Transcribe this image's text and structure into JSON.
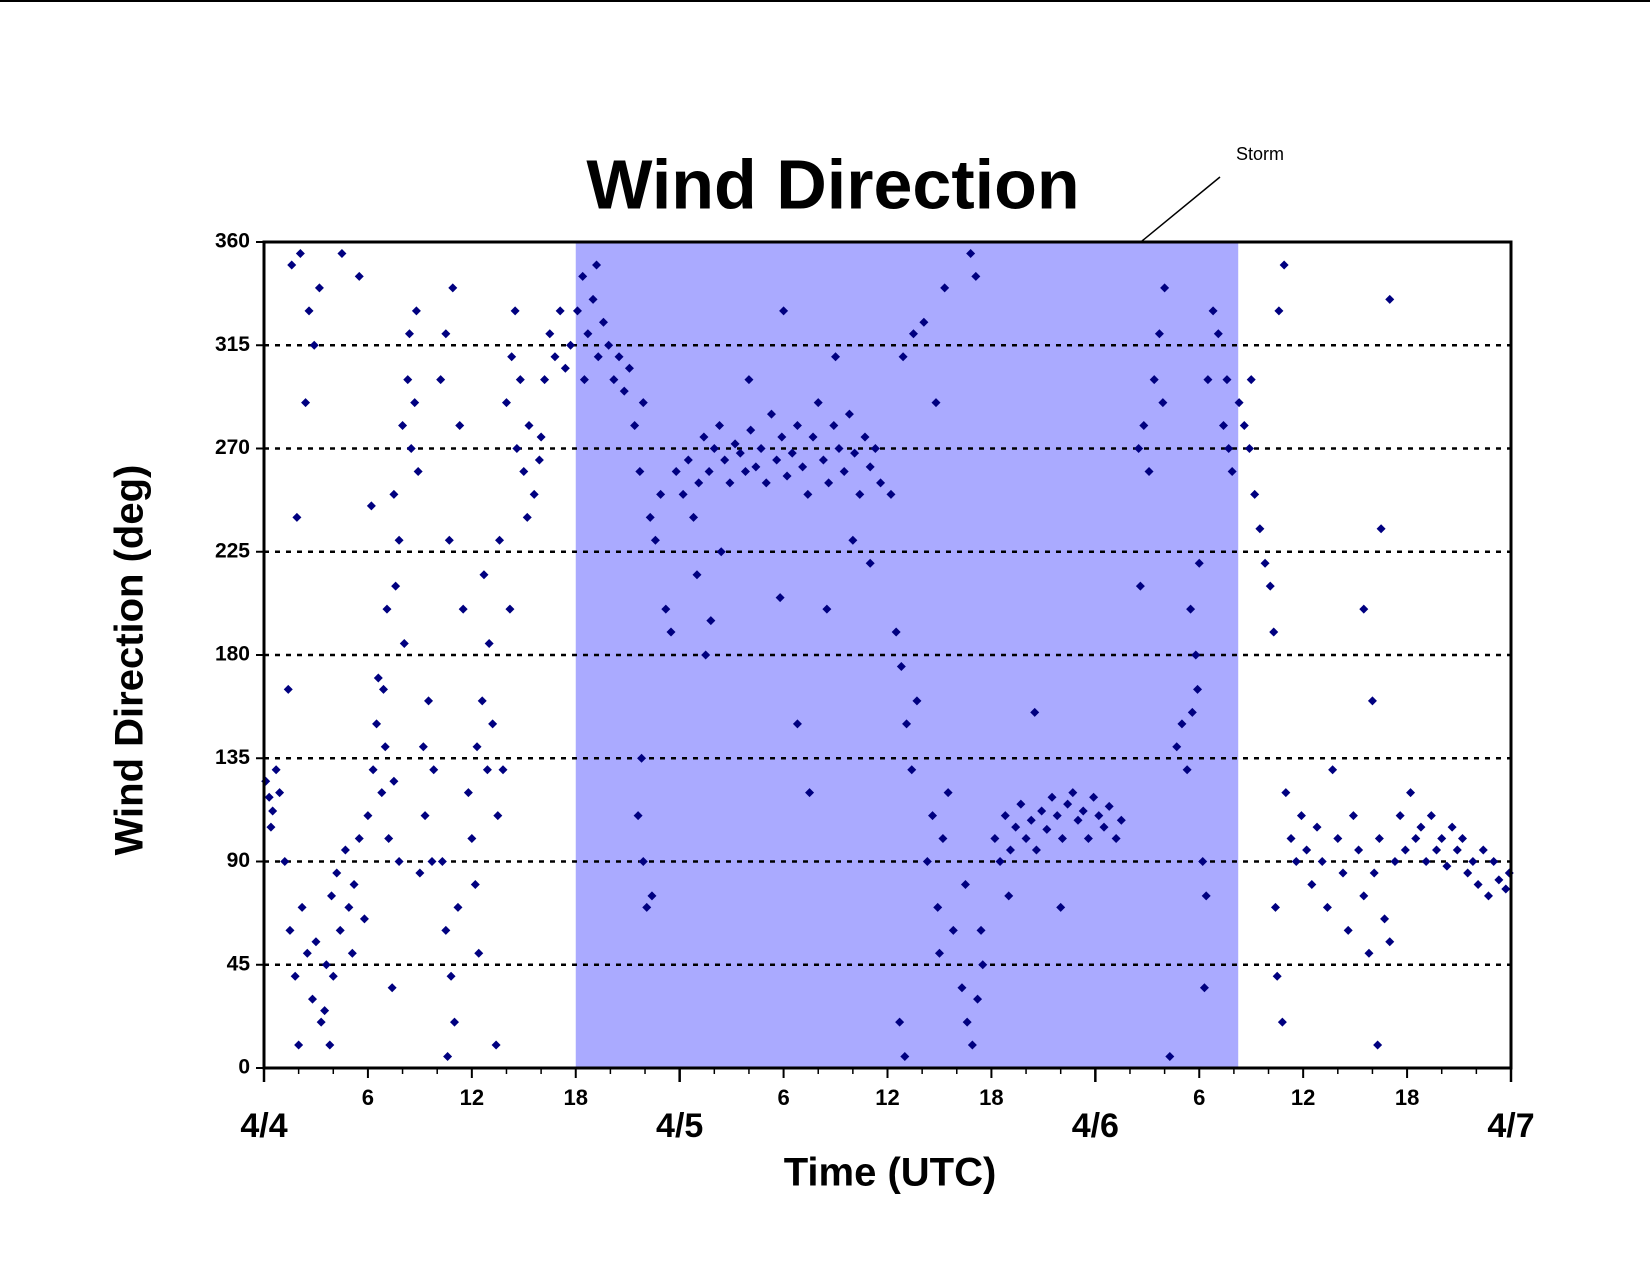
{
  "chart_data": {
    "type": "scatter",
    "title": "Wind Direction",
    "xlabel": "Time (UTC)",
    "ylabel": "Wind Direction (deg)",
    "xlim": [
      0,
      72
    ],
    "ylim": [
      0,
      360
    ],
    "yticks": [
      0,
      45,
      90,
      135,
      180,
      225,
      270,
      315,
      360
    ],
    "xticks": [
      6,
      12,
      18,
      {
        "value": 30,
        "label": "6"
      },
      {
        "value": 36,
        "label": "12"
      },
      {
        "value": 42,
        "label": "18"
      },
      {
        "value": 54,
        "label": "6"
      },
      {
        "value": 60,
        "label": "12"
      },
      {
        "value": 66,
        "label": "18"
      }
    ],
    "xmajorticks": [
      {
        "value": 0,
        "label": "4/4"
      },
      {
        "value": 24,
        "label": "4/5"
      },
      {
        "value": 48,
        "label": "4/6"
      },
      {
        "value": 72,
        "label": "4/7"
      }
    ],
    "xminorticks": [
      2,
      4,
      8,
      10,
      14,
      16,
      20,
      22,
      26,
      28,
      32,
      34,
      38,
      40,
      44,
      46,
      50,
      52,
      56,
      58,
      62,
      64,
      68,
      70
    ],
    "grid": true,
    "shade": {
      "x": [
        18,
        56.25
      ],
      "color": "#aaaaff"
    },
    "annotation": "Storm",
    "series": [
      {
        "color": "#000080",
        "x": [
          0.1,
          0.3,
          0.5,
          0.7,
          0.9,
          0.4,
          1.2,
          1.5,
          1.8,
          2.0,
          2.2,
          2.5,
          2.8,
          3.0,
          3.3,
          3.6,
          1.4,
          1.6,
          2.1,
          2.6,
          2.9,
          3.2,
          3.5,
          3.8,
          2.4,
          1.9,
          3.9,
          4.2,
          4.4,
          4.7,
          4.9,
          5.2,
          5.5,
          5.8,
          4.0,
          5.1,
          4.5,
          5.5,
          6.0,
          6.3,
          6.5,
          6.8,
          7.0,
          7.2,
          6.6,
          7.5,
          7.8,
          6.9,
          6.2,
          7.4,
          7.5,
          7.8,
          8.0,
          8.3,
          8.5,
          8.7,
          8.9,
          7.6,
          8.1,
          8.4,
          7.1,
          8.8,
          9.2,
          9.5,
          9.8,
          9.3,
          9.7,
          9.0,
          10.3,
          10.5,
          10.8,
          11.0,
          11.2,
          10.6,
          10.2,
          10.5,
          10.9,
          11.3,
          10.7,
          11.5,
          11.8,
          12.0,
          12.3,
          12.6,
          12.9,
          13.2,
          13.5,
          12.2,
          13.0,
          13.8,
          12.4,
          13.4,
          12.7,
          13.6,
          14.0,
          14.3,
          14.6,
          15.0,
          15.3,
          15.6,
          14.8,
          15.9,
          14.2,
          14.5,
          15.2,
          16.2,
          16.5,
          16.8,
          17.1,
          17.4,
          17.7,
          16.0,
          18.1,
          18.4,
          18.7,
          19.0,
          19.3,
          19.6,
          19.9,
          20.2,
          20.5,
          18.5,
          19.2,
          20.8,
          21.1,
          21.4,
          21.7,
          21.9,
          22.3,
          22.6,
          22.9,
          23.2,
          23.5,
          23.8,
          21.6,
          21.9,
          21.8,
          22.1,
          22.4,
          24.2,
          24.5,
          24.8,
          25.1,
          25.4,
          25.7,
          26.0,
          26.3,
          26.6,
          26.9,
          27.2,
          27.5,
          27.8,
          28.1,
          28.4,
          28.7,
          29.0,
          29.3,
          29.6,
          29.9,
          30.2,
          30.5,
          30.8,
          31.1,
          31.4,
          31.7,
          32.0,
          32.3,
          32.6,
          32.9,
          33.2,
          33.5,
          33.8,
          34.1,
          34.4,
          34.7,
          35.0,
          35.3,
          35.6,
          25.0,
          25.5,
          25.8,
          26.4,
          28.0,
          30.0,
          31.5,
          32.5,
          33.0,
          34.0,
          30.8,
          29.8,
          35.0,
          36.2,
          36.5,
          36.8,
          37.1,
          37.4,
          37.7,
          36.9,
          37.5,
          38.1,
          36.7,
          37.0,
          38.3,
          38.6,
          38.9,
          39.2,
          39.5,
          39.8,
          39.0,
          39.3,
          38.8,
          40.3,
          40.6,
          40.9,
          41.2,
          41.5,
          40.8,
          41.1,
          40.5,
          41.4,
          42.2,
          42.5,
          42.8,
          43.1,
          43.4,
          43.7,
          44.0,
          44.3,
          44.6,
          44.9,
          45.2,
          45.5,
          45.8,
          46.1,
          46.4,
          46.7,
          47.0,
          47.3,
          47.6,
          47.9,
          48.2,
          48.5,
          48.8,
          49.2,
          49.5,
          43.0,
          44.5,
          46.0,
          50.5,
          50.8,
          51.1,
          51.4,
          51.7,
          52.0,
          51.9,
          50.6,
          52.3,
          52.7,
          53.0,
          53.3,
          53.6,
          53.5,
          53.8,
          54.0,
          53.9,
          54.2,
          54.5,
          54.8,
          55.1,
          55.4,
          55.7,
          55.9,
          55.6,
          54.4,
          54.3,
          56.3,
          56.6,
          56.9,
          57.2,
          57.5,
          57.8,
          58.1,
          57.0,
          58.3,
          58.6,
          58.9,
          58.5,
          58.8,
          58.4,
          59.0,
          59.3,
          59.6,
          59.9,
          60.2,
          60.5,
          60.8,
          61.1,
          61.4,
          61.7,
          62.0,
          62.3,
          62.6,
          62.9,
          63.2,
          63.5,
          63.8,
          64.1,
          64.4,
          64.7,
          65.0,
          65.3,
          65.6,
          65.9,
          66.2,
          66.5,
          66.8,
          67.1,
          67.4,
          67.7,
          68.0,
          68.3,
          68.6,
          68.9,
          69.2,
          69.5,
          69.8,
          70.1,
          70.4,
          70.7,
          71.0,
          71.3,
          71.7,
          71.9,
          64.0,
          65.0,
          64.5,
          63.5,
          64.3
        ],
        "values": [
          125,
          118,
          112,
          130,
          120,
          105,
          90,
          60,
          40,
          10,
          70,
          50,
          30,
          55,
          20,
          45,
          165,
          350,
          355,
          330,
          315,
          340,
          25,
          10,
          290,
          240,
          75,
          85,
          60,
          95,
          70,
          80,
          100,
          65,
          40,
          50,
          355,
          345,
          110,
          130,
          150,
          120,
          140,
          100,
          170,
          125,
          90,
          165,
          245,
          35,
          250,
          230,
          280,
          300,
          270,
          290,
          260,
          210,
          185,
          320,
          200,
          330,
          140,
          160,
          130,
          110,
          90,
          85,
          90,
          60,
          40,
          20,
          70,
          5,
          300,
          320,
          340,
          280,
          230,
          200,
          120,
          100,
          140,
          160,
          130,
          150,
          110,
          80,
          185,
          130,
          50,
          10,
          215,
          230,
          290,
          310,
          270,
          260,
          280,
          250,
          300,
          265,
          200,
          330,
          240,
          300,
          320,
          310,
          330,
          305,
          315,
          275,
          330,
          345,
          320,
          335,
          310,
          325,
          315,
          300,
          310,
          300,
          350,
          295,
          305,
          280,
          260,
          290,
          240,
          230,
          250,
          200,
          190,
          260,
          110,
          90,
          135,
          70,
          75,
          250,
          265,
          240,
          255,
          275,
          260,
          270,
          280,
          265,
          255,
          272,
          268,
          260,
          278,
          262,
          270,
          255,
          285,
          265,
          275,
          258,
          268,
          280,
          262,
          250,
          275,
          290,
          265,
          255,
          280,
          270,
          260,
          285,
          268,
          250,
          275,
          262,
          270,
          255,
          215,
          180,
          195,
          225,
          300,
          330,
          120,
          200,
          310,
          230,
          150,
          205,
          220,
          250,
          190,
          175,
          150,
          130,
          160,
          310,
          320,
          325,
          20,
          5,
          90,
          110,
          70,
          100,
          120,
          60,
          50,
          340,
          290,
          35,
          20,
          10,
          30,
          45,
          355,
          345,
          80,
          60,
          100,
          90,
          110,
          95,
          105,
          115,
          100,
          108,
          95,
          112,
          104,
          118,
          110,
          100,
          115,
          120,
          108,
          112,
          100,
          118,
          110,
          105,
          114,
          100,
          108,
          75,
          155,
          70,
          270,
          280,
          260,
          300,
          320,
          340,
          290,
          210,
          5,
          140,
          150,
          130,
          155,
          200,
          180,
          220,
          165,
          90,
          300,
          330,
          320,
          280,
          270,
          260,
          300,
          75,
          35,
          290,
          280,
          270,
          250,
          235,
          220,
          210,
          300,
          190,
          330,
          350,
          40,
          20,
          70,
          120,
          100,
          90,
          110,
          95,
          80,
          105,
          90,
          70,
          130,
          100,
          85,
          60,
          110,
          95,
          75,
          50,
          85,
          100,
          65,
          55,
          90,
          110,
          95,
          120,
          100,
          105,
          90,
          110,
          95,
          100,
          88,
          105,
          95,
          100,
          85,
          90,
          80,
          95,
          75,
          90,
          82,
          78,
          85,
          160,
          335,
          235,
          200,
          10
        ]
      }
    ]
  }
}
